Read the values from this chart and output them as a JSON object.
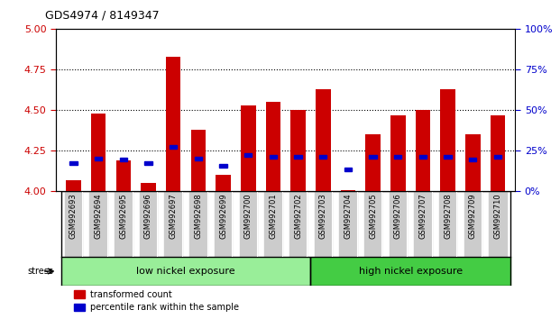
{
  "title": "GDS4974 / 8149347",
  "samples": [
    "GSM992693",
    "GSM992694",
    "GSM992695",
    "GSM992696",
    "GSM992697",
    "GSM992698",
    "GSM992699",
    "GSM992700",
    "GSM992701",
    "GSM992702",
    "GSM992703",
    "GSM992704",
    "GSM992705",
    "GSM992706",
    "GSM992707",
    "GSM992708",
    "GSM992709",
    "GSM992710"
  ],
  "red_values": [
    4.07,
    4.48,
    4.19,
    4.05,
    4.83,
    4.38,
    4.1,
    4.53,
    4.55,
    4.5,
    4.63,
    4.01,
    4.35,
    4.47,
    4.5,
    4.63,
    4.35,
    4.47
  ],
  "blue_values": [
    0.175,
    0.2,
    0.195,
    0.175,
    0.275,
    0.2,
    0.155,
    0.225,
    0.215,
    0.215,
    0.215,
    0.135,
    0.215,
    0.215,
    0.215,
    0.215,
    0.195,
    0.215
  ],
  "ylim_left": [
    4.0,
    5.0
  ],
  "ylim_right": [
    0,
    100
  ],
  "yticks_left": [
    4.0,
    4.25,
    4.5,
    4.75,
    5.0
  ],
  "yticks_right": [
    0,
    25,
    50,
    75,
    100
  ],
  "grid_lines": [
    4.25,
    4.5,
    4.75
  ],
  "low_nickel_count": 10,
  "high_nickel_count": 8,
  "group_labels": [
    "low nickel exposure",
    "high nickel exposure"
  ],
  "stress_label": "stress",
  "bar_color": "#cc0000",
  "blue_color": "#0000cc",
  "bar_width": 0.6,
  "base_value": 4.0,
  "low_nickel_color": "#99ee99",
  "high_nickel_color": "#44cc44",
  "bg_color": "#ffffff",
  "tick_label_color_left": "#cc0000",
  "tick_label_color_right": "#0000cc",
  "legend_red_label": "transformed count",
  "legend_blue_label": "percentile rank within the sample",
  "xticklabel_bg": "#cccccc"
}
